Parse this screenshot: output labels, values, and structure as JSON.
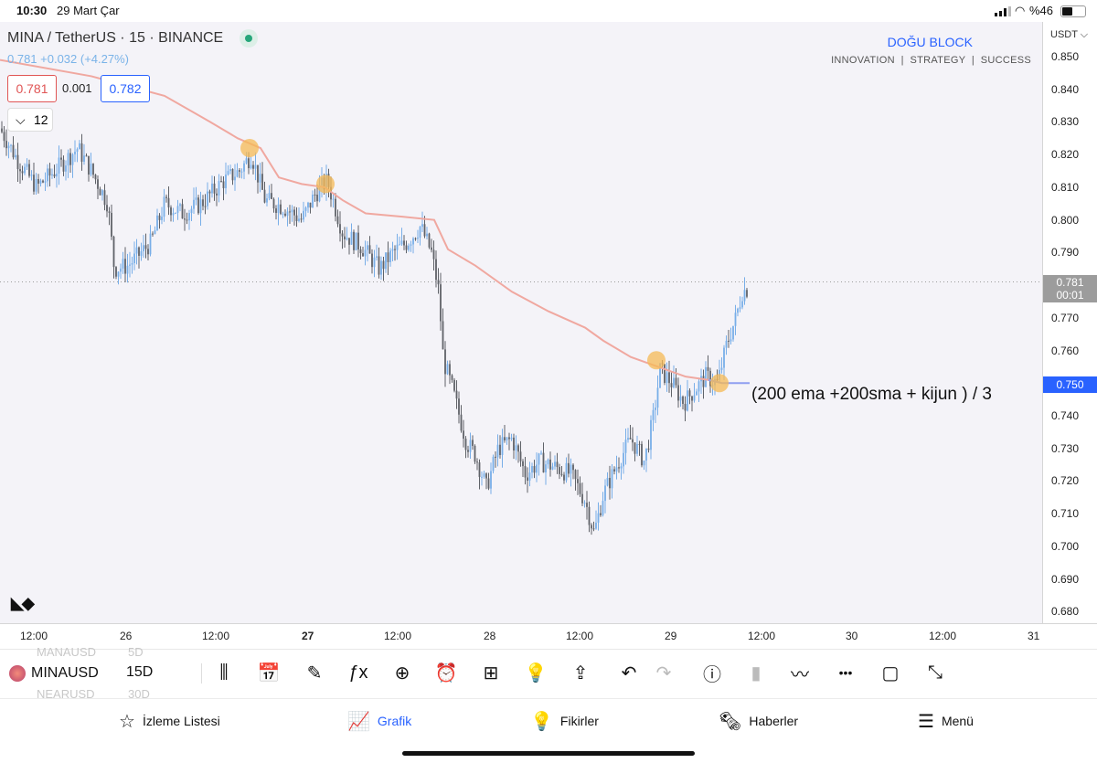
{
  "status": {
    "time": "10:30",
    "date": "29 Mart Çar",
    "battery": "%46"
  },
  "symbol": {
    "title": "MINA / TetherUS · 15 · BINANCE",
    "change": "0.781  +0.032 (+4.27%)",
    "bid": "0.781",
    "spread": "0.001",
    "ask": "0.782",
    "collapse_label": "12"
  },
  "brand": {
    "name": "DOĞU BLOCK",
    "tagline": "INNOVATION  |  STRATEGY  |  SUCCESS"
  },
  "annotation": "(200 ema +200sma + kijun ) / 3",
  "price_scale": {
    "currency": "USDT",
    "labels": [
      "0.850",
      "0.840",
      "0.830",
      "0.820",
      "0.810",
      "0.800",
      "0.790",
      "0.770",
      "0.760",
      "0.740",
      "0.730",
      "0.720",
      "0.710",
      "0.700",
      "0.690",
      "0.680"
    ],
    "last_price": "0.781",
    "countdown": "00:01",
    "indicator_price": "0.750"
  },
  "time_scale": [
    "12:00",
    "26",
    "12:00",
    "27",
    "12:00",
    "28",
    "12:00",
    "29",
    "12:00",
    "30",
    "12:00",
    "31"
  ],
  "watch_symbols": {
    "above": "MANAUSD",
    "above_tf": "5D",
    "below": "NEARUSD",
    "below_tf": "30D"
  },
  "current_symbol": "MINAUSD",
  "interval": "15D",
  "toolbar_icons": [
    "candles-icon",
    "calendar-icon",
    "pen-icon",
    "indicators-icon",
    "add-icon",
    "alert-icon",
    "layout-icon",
    "ideas-bulb-icon",
    "share-icon",
    "undo-icon",
    "redo-icon",
    "info-icon",
    "bars-icon",
    "trend-icon",
    "more-icon",
    "rectangle-icon",
    "fullscreen-icon"
  ],
  "tabs": [
    {
      "label": "İzleme Listesi",
      "icon": "star-icon"
    },
    {
      "label": "Grafik",
      "icon": "chart-icon"
    },
    {
      "label": "Fikirler",
      "icon": "bulb-icon"
    },
    {
      "label": "Haberler",
      "icon": "news-icon"
    },
    {
      "label": "Menü",
      "icon": "menu-icon"
    }
  ],
  "colors": {
    "up": "#78aee8",
    "down": "#5f6268",
    "ma_line": "#f0a8a0",
    "last_price_bg": "#9c9c9c",
    "indicator_bg": "#2962ff",
    "accent": "#2962ff",
    "marker": "#f5b955"
  }
}
